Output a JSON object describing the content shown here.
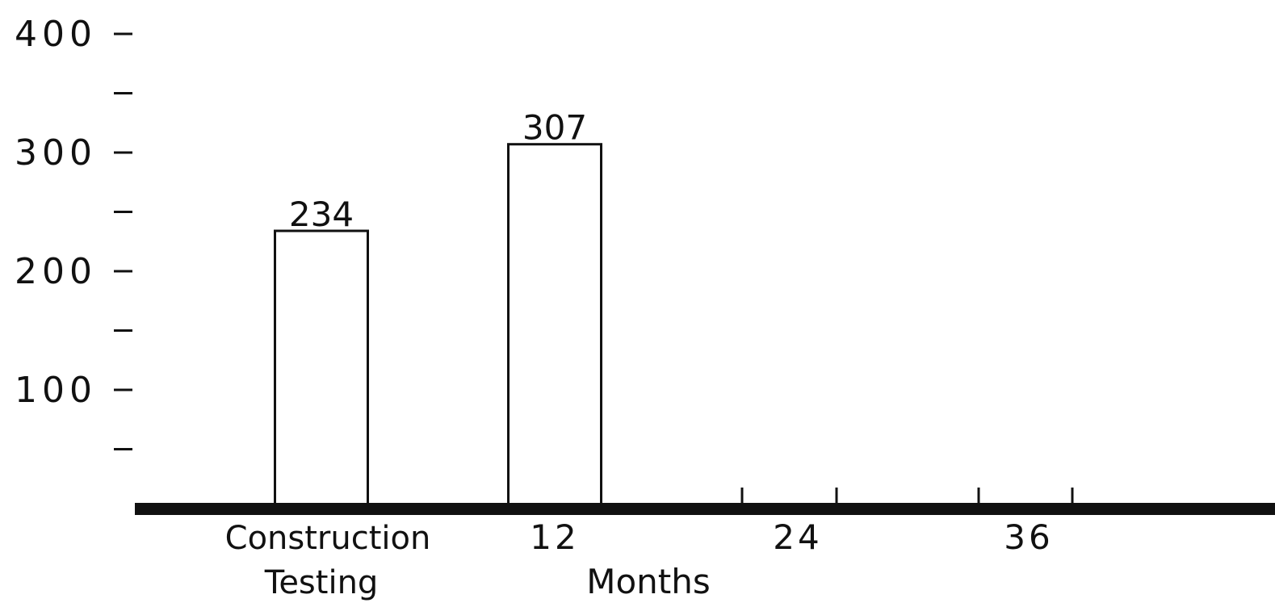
{
  "chart_data": {
    "type": "bar",
    "categories": [
      "Construction Testing",
      "12",
      "24",
      "36"
    ],
    "values": [
      234,
      307,
      null,
      null
    ],
    "data_labels": [
      "234",
      "307",
      "",
      ""
    ],
    "xlabel": "Months",
    "ylabel": "",
    "ylim": [
      0,
      400
    ],
    "y_ticks": [
      {
        "value": 400,
        "label": "400"
      },
      {
        "value": 300,
        "label": "300"
      },
      {
        "value": 200,
        "label": "200"
      },
      {
        "value": 100,
        "label": "100"
      }
    ],
    "y_minor_ticks": [
      50,
      150,
      250,
      350
    ],
    "grid": false,
    "legend": "none",
    "colors": {
      "bar_fill": "#ffffff",
      "stroke": "#111111"
    }
  }
}
